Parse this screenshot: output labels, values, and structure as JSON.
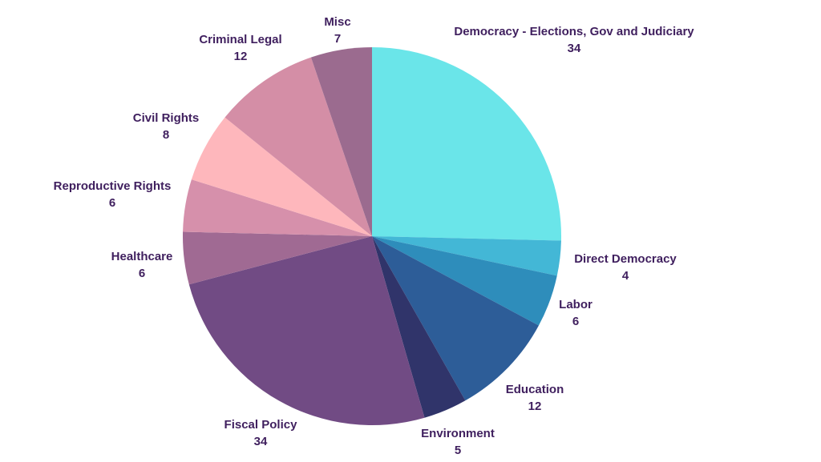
{
  "chart_data": {
    "type": "pie",
    "start_angle_deg": 0,
    "direction": "clockwise",
    "label_color": "#3f1f5e",
    "slices": [
      {
        "label": "Democracy - Elections, Gov and Judiciary",
        "value": 34,
        "value_text": "34",
        "color": "#6ae5e9"
      },
      {
        "label": "Direct Democracy",
        "value": 4,
        "value_text": "4",
        "color": "#43b7d6"
      },
      {
        "label": "Labor",
        "value": 6,
        "value_text": "6",
        "color": "#2e8dbb"
      },
      {
        "label": "Education",
        "value": 12,
        "value_text": "12",
        "color": "#2d5d98"
      },
      {
        "label": "Environment",
        "value": 5,
        "value_text": "5",
        "color": "#30346a"
      },
      {
        "label": "Fiscal Policy",
        "value": 34,
        "value_text": "34",
        "color": "#714b84"
      },
      {
        "label": "Healthcare",
        "value": 6,
        "value_text": "6",
        "color": "#a06a93"
      },
      {
        "label": "Reproductive Rights",
        "value": 6,
        "value_text": "6",
        "color": "#d690ab"
      },
      {
        "label": "Civil Rights",
        "value": 8,
        "value_text": "8",
        "color": "#feb7bc"
      },
      {
        "label": "Criminal Legal",
        "value": 12,
        "value_text": "12",
        "color": "#d48ea6"
      },
      {
        "label": "Misc",
        "value": 7,
        "value_text": "7",
        "color": "#9b6b8f"
      }
    ]
  }
}
